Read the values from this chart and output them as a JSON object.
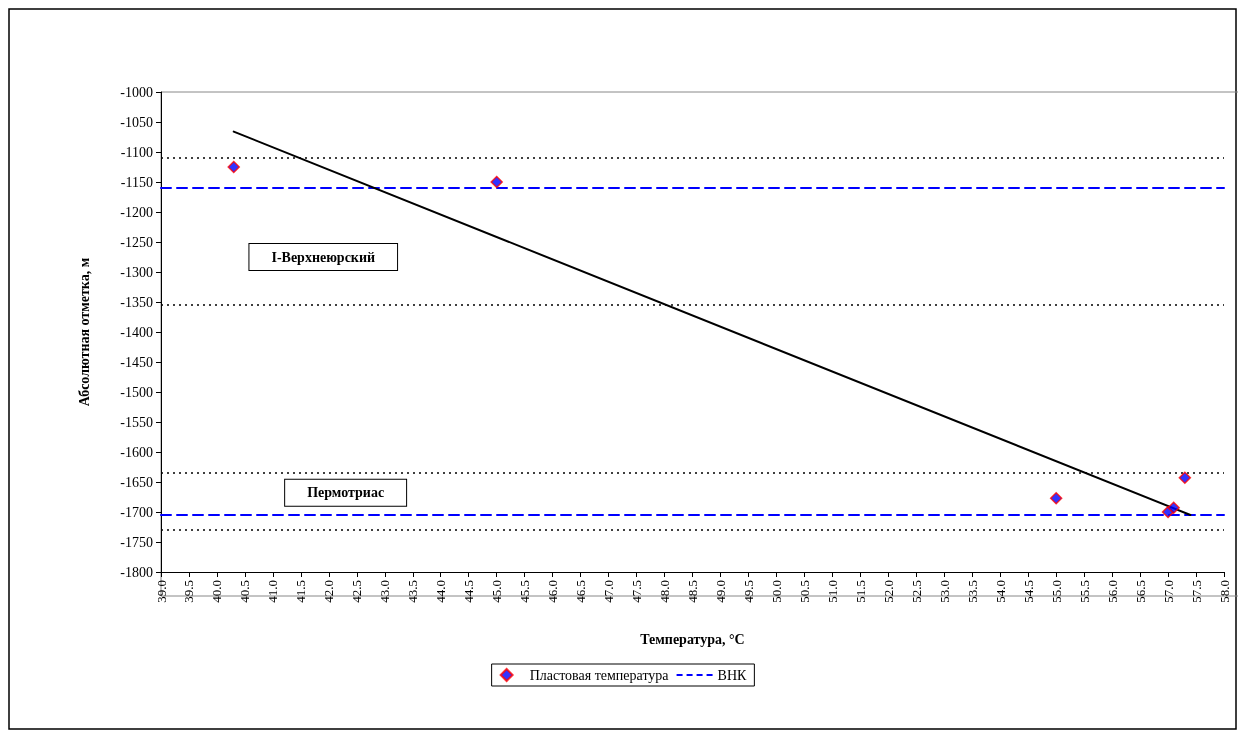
{
  "chart_data": {
    "type": "scatter",
    "xlabel": "Температура, °C",
    "ylabel": "Абсолютная отметка, м",
    "xlim": [
      39,
      58
    ],
    "ylim": [
      -1800,
      -1000
    ],
    "xticks": [
      {
        "value": 39,
        "label": "39.0"
      },
      {
        "value": 39.5,
        "label": "39.5"
      },
      {
        "value": 40,
        "label": "40.0"
      },
      {
        "value": 40.5,
        "label": "40.5"
      },
      {
        "value": 41,
        "label": "41.0"
      },
      {
        "value": 41.5,
        "label": "41.5"
      },
      {
        "value": 42,
        "label": "42.0"
      },
      {
        "value": 42.5,
        "label": "42.5"
      },
      {
        "value": 43,
        "label": "43.0"
      },
      {
        "value": 43.5,
        "label": "43.5"
      },
      {
        "value": 44,
        "label": "44.0"
      },
      {
        "value": 44.5,
        "label": "44.5"
      },
      {
        "value": 45,
        "label": "45.0"
      },
      {
        "value": 45.5,
        "label": "45.5"
      },
      {
        "value": 46,
        "label": "46.0"
      },
      {
        "value": 46.5,
        "label": "46.5"
      },
      {
        "value": 47,
        "label": "47.0"
      },
      {
        "value": 47.5,
        "label": "47.5"
      },
      {
        "value": 48,
        "label": "48.0"
      },
      {
        "value": 48.5,
        "label": "48.5"
      },
      {
        "value": 49,
        "label": "49.0"
      },
      {
        "value": 49.5,
        "label": "49.5"
      },
      {
        "value": 50,
        "label": "50.0"
      },
      {
        "value": 50.5,
        "label": "50.5"
      },
      {
        "value": 51,
        "label": "51.0"
      },
      {
        "value": 51.5,
        "label": "51.5"
      },
      {
        "value": 52,
        "label": "52.0"
      },
      {
        "value": 52.5,
        "label": "52.5"
      },
      {
        "value": 53,
        "label": "53.0"
      },
      {
        "value": 53.5,
        "label": "53.5"
      },
      {
        "value": 54,
        "label": "54.0"
      },
      {
        "value": 54.5,
        "label": "54.5"
      },
      {
        "value": 55,
        "label": "55.0"
      },
      {
        "value": 55.5,
        "label": "55.5"
      },
      {
        "value": 56,
        "label": "56.0"
      },
      {
        "value": 56.5,
        "label": "56.5"
      },
      {
        "value": 57,
        "label": "57.0"
      },
      {
        "value": 57.5,
        "label": "57.5"
      },
      {
        "value": 58,
        "label": "58.0"
      }
    ],
    "yticks": [
      -1000,
      -1050,
      -1100,
      -1150,
      -1200,
      -1250,
      -1300,
      -1350,
      -1400,
      -1450,
      -1500,
      -1550,
      -1600,
      -1650,
      -1700,
      -1750,
      -1800
    ],
    "series": [
      {
        "name": "Пластовая температура",
        "color": "#0000ff",
        "marker": "diamond",
        "x": [
          40.3,
          45.0,
          55.0,
          57.0,
          57.1,
          57.3
        ],
        "values": [
          -1125,
          -1150,
          -1677,
          -1700,
          -1693,
          -1643
        ]
      },
      {
        "name": "ВНК",
        "type": "line",
        "color": "#0000ff",
        "line_style": "dashed",
        "marker": "none",
        "x": [
          39,
          58
        ],
        "values": [
          -1160,
          -1160
        ]
      },
      {
        "type": "line",
        "color": "#0000ff",
        "line_style": "dashed",
        "marker": "none",
        "x": [
          39,
          58
        ],
        "values": [
          -1705,
          -1705
        ]
      },
      {
        "type": "line",
        "color": "#000000",
        "line_style": "solid",
        "marker": "none",
        "x": [
          40.3,
          57.4
        ],
        "values": [
          -1066,
          -1705
        ]
      }
    ],
    "ref_lines": [
      {
        "axis": "y",
        "value": -1110,
        "color": "#000000",
        "line_style": "dotted"
      },
      {
        "axis": "y",
        "value": -1355,
        "color": "#000000",
        "line_style": "dotted"
      },
      {
        "axis": "y",
        "value": -1635,
        "color": "#000000",
        "line_style": "dotted"
      },
      {
        "axis": "y",
        "value": -1730,
        "color": "#000000",
        "line_style": "dotted"
      }
    ],
    "annotations": [
      "I-Верхнеюрский",
      "Пермотриас"
    ],
    "grid": false,
    "legend": "bottom"
  }
}
